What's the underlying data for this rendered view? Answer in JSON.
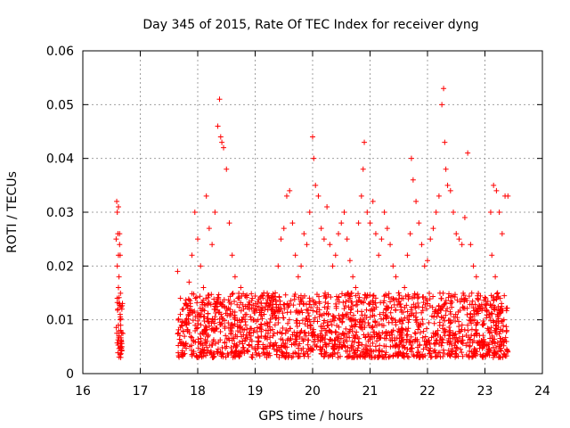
{
  "chart_data": {
    "type": "scatter",
    "title": "Day 345 of 2015, Rate Of TEC Index for receiver dyng",
    "xlabel": "GPS time / hours",
    "ylabel": "ROTI / TECUs",
    "xlim": [
      16,
      24
    ],
    "ylim": [
      0,
      0.06
    ],
    "grid": true,
    "x_ticks": [
      "16",
      "17",
      "18",
      "19",
      "20",
      "21",
      "22",
      "23",
      "24"
    ],
    "y_ticks": [
      "0",
      "0.01",
      "0.02",
      "0.03",
      "0.04",
      "0.05",
      "0.06"
    ],
    "marker": "+",
    "marker_color": "#ff0000",
    "series": [
      {
        "name": "ROTI",
        "x": [
          16.58,
          16.59,
          16.6,
          16.61,
          16.62,
          16.63,
          16.64,
          16.65,
          16.66,
          16.67,
          16.68,
          16.6,
          16.61,
          16.62,
          16.63,
          16.64,
          16.65,
          16.66,
          16.67,
          16.6,
          16.62,
          16.64,
          16.66,
          16.68,
          16.62,
          16.65,
          17.65,
          17.7,
          17.75,
          17.8,
          17.85,
          17.9,
          17.95,
          18.0,
          18.05,
          18.1,
          18.15,
          18.2,
          18.25,
          18.3,
          18.35,
          18.38,
          18.4,
          18.42,
          18.45,
          18.5,
          18.55,
          18.6,
          18.65,
          18.7,
          18.75,
          18.8,
          18.85,
          18.9,
          18.95,
          19.0,
          19.05,
          19.1,
          19.15,
          19.2,
          19.25,
          19.3,
          19.35,
          19.4,
          19.45,
          19.5,
          19.55,
          19.6,
          19.65,
          19.7,
          19.75,
          19.8,
          19.85,
          19.9,
          19.95,
          20.0,
          20.02,
          20.05,
          20.1,
          20.15,
          20.2,
          20.25,
          20.3,
          20.35,
          20.4,
          20.45,
          20.5,
          20.55,
          20.6,
          20.65,
          20.7,
          20.75,
          20.8,
          20.85,
          20.88,
          20.9,
          20.95,
          21.0,
          21.05,
          21.1,
          21.15,
          21.2,
          21.25,
          21.3,
          21.35,
          21.4,
          21.45,
          21.5,
          21.55,
          21.6,
          21.65,
          21.7,
          21.72,
          21.75,
          21.8,
          21.85,
          21.9,
          21.95,
          22.0,
          22.05,
          22.1,
          22.15,
          22.2,
          22.25,
          22.28,
          22.3,
          22.32,
          22.35,
          22.4,
          22.45,
          22.5,
          22.55,
          22.6,
          22.65,
          22.7,
          22.75,
          22.8,
          22.85,
          23.1,
          23.15,
          23.2,
          23.25,
          23.3,
          23.35,
          23.4,
          23.12,
          23.18,
          23.22,
          23.28,
          23.33,
          23.38
        ],
        "y": [
          0.025,
          0.032,
          0.03,
          0.026,
          0.022,
          0.018,
          0.013,
          0.01,
          0.008,
          0.006,
          0.005,
          0.02,
          0.012,
          0.009,
          0.007,
          0.024,
          0.011,
          0.008,
          0.006,
          0.014,
          0.016,
          0.026,
          0.009,
          0.012,
          0.031,
          0.022,
          0.019,
          0.014,
          0.012,
          0.013,
          0.017,
          0.022,
          0.03,
          0.025,
          0.02,
          0.016,
          0.033,
          0.027,
          0.024,
          0.03,
          0.046,
          0.051,
          0.044,
          0.043,
          0.042,
          0.038,
          0.028,
          0.022,
          0.018,
          0.014,
          0.016,
          0.012,
          0.011,
          0.012,
          0.014,
          0.012,
          0.01,
          0.012,
          0.015,
          0.013,
          0.014,
          0.012,
          0.015,
          0.02,
          0.025,
          0.027,
          0.033,
          0.034,
          0.028,
          0.022,
          0.018,
          0.02,
          0.026,
          0.024,
          0.03,
          0.044,
          0.04,
          0.035,
          0.033,
          0.027,
          0.025,
          0.031,
          0.024,
          0.02,
          0.022,
          0.026,
          0.028,
          0.03,
          0.025,
          0.021,
          0.018,
          0.016,
          0.028,
          0.033,
          0.038,
          0.043,
          0.03,
          0.028,
          0.032,
          0.026,
          0.022,
          0.025,
          0.03,
          0.027,
          0.024,
          0.02,
          0.018,
          0.015,
          0.014,
          0.016,
          0.022,
          0.026,
          0.04,
          0.036,
          0.032,
          0.028,
          0.024,
          0.02,
          0.021,
          0.025,
          0.027,
          0.03,
          0.033,
          0.05,
          0.053,
          0.043,
          0.038,
          0.035,
          0.034,
          0.03,
          0.026,
          0.025,
          0.024,
          0.029,
          0.041,
          0.024,
          0.02,
          0.018,
          0.03,
          0.035,
          0.034,
          0.03,
          0.026,
          0.033,
          0.033,
          0.022,
          0.018,
          0.015,
          0.012,
          0.01,
          0.008
        ]
      }
    ],
    "dense_band": {
      "x_ranges": [
        [
          16.58,
          16.7
        ],
        [
          17.65,
          23.4
        ]
      ],
      "y_range": [
        0.003,
        0.015
      ]
    }
  }
}
